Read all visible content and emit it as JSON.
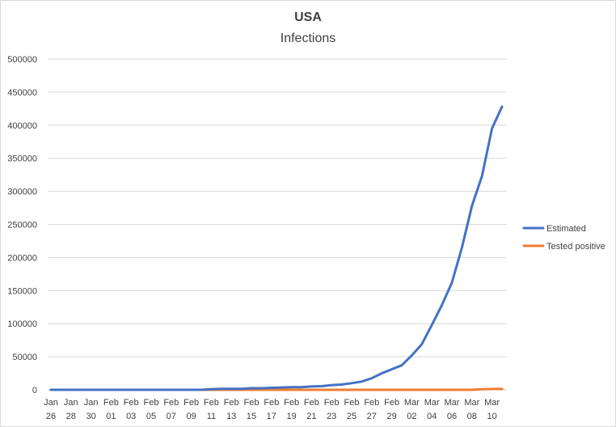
{
  "chart_data": {
    "type": "line",
    "title": "USA",
    "subtitle": "Infections",
    "xlabel": "",
    "ylabel": "",
    "ylim": [
      0,
      500000
    ],
    "y_ticks": [
      0,
      50000,
      100000,
      150000,
      200000,
      250000,
      300000,
      350000,
      400000,
      450000,
      500000
    ],
    "y_tick_labels": [
      "0",
      "50000",
      "100000",
      "150000",
      "200000",
      "250000",
      "300000",
      "350000",
      "400000",
      "450000",
      "500000"
    ],
    "grid": true,
    "legend_position": "right",
    "x": [
      "Jan 26",
      "Jan 27",
      "Jan 28",
      "Jan 29",
      "Jan 30",
      "Jan 31",
      "Feb 01",
      "Feb 02",
      "Feb 03",
      "Feb 04",
      "Feb 05",
      "Feb 06",
      "Feb 07",
      "Feb 08",
      "Feb 09",
      "Feb 10",
      "Feb 11",
      "Feb 12",
      "Feb 13",
      "Feb 14",
      "Feb 15",
      "Feb 16",
      "Feb 17",
      "Feb 18",
      "Feb 19",
      "Feb 20",
      "Feb 21",
      "Feb 22",
      "Feb 23",
      "Feb 24",
      "Feb 25",
      "Feb 26",
      "Feb 27",
      "Feb 28",
      "Feb 29",
      "Mar 01",
      "Mar 02",
      "Mar 03",
      "Mar 04",
      "Mar 05",
      "Mar 06",
      "Mar 07",
      "Mar 08",
      "Mar 09",
      "Mar 10",
      "Mar 11"
    ],
    "x_tick_labels": [
      {
        "index": 0,
        "line1": "Jan",
        "line2": "26"
      },
      {
        "index": 2,
        "line1": "Jan",
        "line2": "28"
      },
      {
        "index": 4,
        "line1": "Jan",
        "line2": "30"
      },
      {
        "index": 6,
        "line1": "Feb",
        "line2": "01"
      },
      {
        "index": 8,
        "line1": "Feb",
        "line2": "03"
      },
      {
        "index": 10,
        "line1": "Feb",
        "line2": "05"
      },
      {
        "index": 12,
        "line1": "Feb",
        "line2": "07"
      },
      {
        "index": 14,
        "line1": "Feb",
        "line2": "09"
      },
      {
        "index": 16,
        "line1": "Feb",
        "line2": "11"
      },
      {
        "index": 18,
        "line1": "Feb",
        "line2": "13"
      },
      {
        "index": 20,
        "line1": "Feb",
        "line2": "15"
      },
      {
        "index": 22,
        "line1": "Feb",
        "line2": "17"
      },
      {
        "index": 24,
        "line1": "Feb",
        "line2": "19"
      },
      {
        "index": 26,
        "line1": "Feb",
        "line2": "21"
      },
      {
        "index": 28,
        "line1": "Feb",
        "line2": "23"
      },
      {
        "index": 30,
        "line1": "Feb",
        "line2": "25"
      },
      {
        "index": 32,
        "line1": "Feb",
        "line2": "27"
      },
      {
        "index": 34,
        "line1": "Feb",
        "line2": "29"
      },
      {
        "index": 36,
        "line1": "Mar",
        "line2": "02"
      },
      {
        "index": 38,
        "line1": "Mar",
        "line2": "04"
      },
      {
        "index": 40,
        "line1": "Mar",
        "line2": "06"
      },
      {
        "index": 42,
        "line1": "Mar",
        "line2": "08"
      },
      {
        "index": 44,
        "line1": "Mar",
        "line2": "10"
      }
    ],
    "series": [
      {
        "name": "Estimated",
        "color": "#4472c4",
        "values": [
          0,
          0,
          0,
          0,
          0,
          0,
          0,
          0,
          0,
          0,
          0,
          0,
          0,
          0,
          0,
          0,
          1000,
          1500,
          1500,
          1500,
          2500,
          2500,
          3000,
          3500,
          4000,
          4000,
          5000,
          5500,
          7000,
          8000,
          10000,
          12500,
          17500,
          25000,
          31000,
          37000,
          52000,
          69000,
          98000,
          128000,
          162000,
          215000,
          278000,
          323000,
          395000,
          428000
        ]
      },
      {
        "name": "Tested positive",
        "color": "#ed7d31",
        "values": [
          0,
          0,
          0,
          0,
          0,
          0,
          0,
          0,
          0,
          0,
          0,
          0,
          0,
          0,
          0,
          0,
          0,
          0,
          0,
          0,
          0,
          0,
          0,
          0,
          0,
          0,
          0,
          0,
          0,
          0,
          0,
          0,
          0,
          0,
          0,
          0,
          0,
          0,
          0,
          0,
          0,
          0,
          0,
          1000,
          1200,
          1300
        ]
      }
    ]
  }
}
